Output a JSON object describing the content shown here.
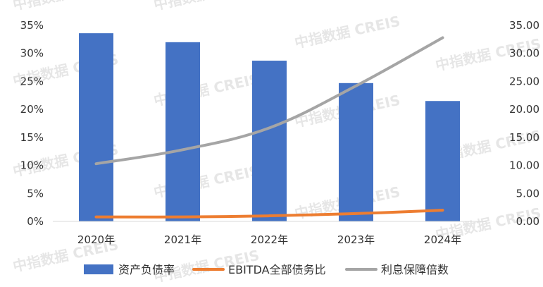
{
  "watermark": "中指数据 CREIS",
  "chart_data": {
    "type": "bar",
    "categories": [
      "2020年",
      "2021年",
      "2022年",
      "2023年",
      "2024年"
    ],
    "series": [
      {
        "name": "资产负债率",
        "type": "bar",
        "axis": "left",
        "values": [
          33.6,
          32.0,
          28.7,
          24.7,
          21.5
        ],
        "color": "#4472c4"
      },
      {
        "name": "EBITDA全部债务比",
        "type": "line",
        "axis": "right",
        "values": [
          0.8,
          0.8,
          1.0,
          1.4,
          2.0
        ],
        "color": "#ed7d31"
      },
      {
        "name": "利息保障倍数",
        "type": "line",
        "axis": "right",
        "values": [
          10.3,
          12.8,
          16.7,
          24.2,
          32.8
        ],
        "color": "#a5a5a5"
      }
    ],
    "y_left": {
      "range": [
        0,
        35
      ],
      "ticks": [
        "0%",
        "5%",
        "10%",
        "15%",
        "20%",
        "25%",
        "30%",
        "35%"
      ]
    },
    "y_right": {
      "range": [
        0,
        35
      ],
      "ticks": [
        "0.00",
        "5.00",
        "10.00",
        "15.00",
        "20.00",
        "25.00",
        "30.00",
        "35.00"
      ]
    },
    "grid": false,
    "legend_position": "bottom"
  }
}
